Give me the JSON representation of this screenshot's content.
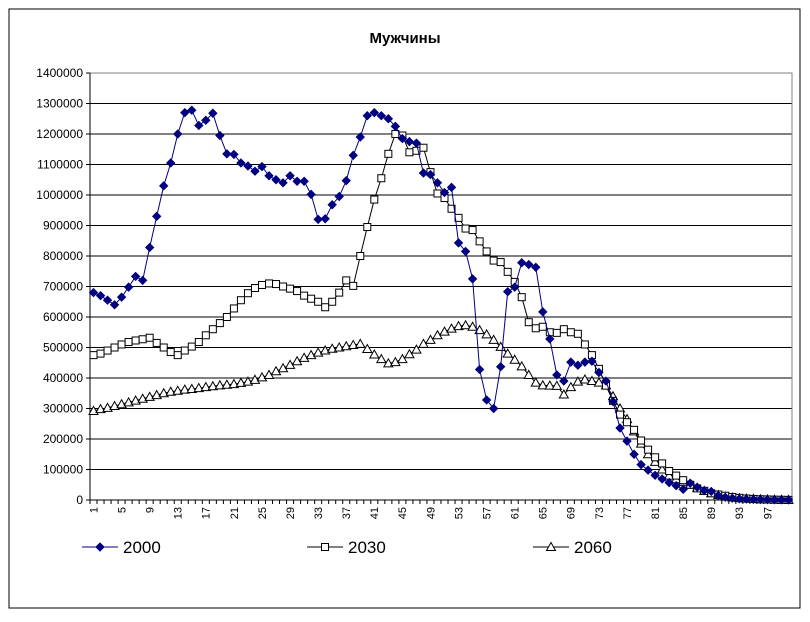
{
  "chart_data": {
    "type": "line",
    "title": "Мужчины",
    "xlabel": "",
    "ylabel": "",
    "ylim": [
      0,
      1400000
    ],
    "yticks": [
      0,
      100000,
      200000,
      300000,
      400000,
      500000,
      600000,
      700000,
      800000,
      900000,
      1000000,
      1100000,
      1200000,
      1300000,
      1400000
    ],
    "xlim": [
      1,
      100
    ],
    "xticks": [
      1,
      5,
      9,
      13,
      17,
      21,
      25,
      29,
      33,
      37,
      41,
      45,
      49,
      53,
      57,
      61,
      65,
      69,
      73,
      77,
      81,
      85,
      89,
      93,
      97
    ],
    "grid": "horizontal",
    "legend_position": "bottom",
    "series": [
      {
        "name": "2000",
        "color": "#000080",
        "marker": "diamond-filled",
        "values": [
          680000,
          670000,
          655000,
          640000,
          665000,
          698000,
          733000,
          720000,
          828000,
          930000,
          1030000,
          1105000,
          1200000,
          1270000,
          1278000,
          1228000,
          1245000,
          1268000,
          1195000,
          1135000,
          1133000,
          1105000,
          1095000,
          1078000,
          1093000,
          1063000,
          1050000,
          1040000,
          1063000,
          1045000,
          1045000,
          1002000,
          920000,
          922000,
          968000,
          995000,
          1047000,
          1130000,
          1190000,
          1260000,
          1270000,
          1260000,
          1250000,
          1225000,
          1185000,
          1175000,
          1170000,
          1072000,
          1067000,
          1040000,
          1008000,
          1025000,
          843000,
          815000,
          725000,
          428000,
          328000,
          300000,
          437000,
          683000,
          698000,
          778000,
          772000,
          763000,
          617000,
          528000,
          410000,
          390000,
          452000,
          442000,
          452000,
          455000,
          418000,
          390000,
          323000,
          236000,
          193000,
          150000,
          116000,
          98000,
          81000,
          69000,
          57000,
          47000,
          35000,
          55000,
          42000,
          31000,
          28000,
          15000,
          9000,
          6000,
          4000,
          3000,
          2000,
          1500,
          1000,
          800,
          500,
          300
        ]
      },
      {
        "name": "2030",
        "color": "#000000",
        "marker": "square-open",
        "values": [
          475000,
          480000,
          490000,
          500000,
          510000,
          518000,
          523000,
          527000,
          532000,
          515000,
          500000,
          485000,
          475000,
          490000,
          503000,
          518000,
          540000,
          560000,
          580000,
          600000,
          628000,
          655000,
          678000,
          695000,
          705000,
          710000,
          708000,
          700000,
          693000,
          685000,
          670000,
          660000,
          650000,
          632000,
          650000,
          680000,
          720000,
          702000,
          800000,
          895000,
          985000,
          1055000,
          1135000,
          1200000,
          1195000,
          1140000,
          1145000,
          1155000,
          1075000,
          1005000,
          990000,
          955000,
          925000,
          890000,
          885000,
          848000,
          815000,
          785000,
          780000,
          748000,
          715000,
          665000,
          583000,
          563000,
          568000,
          550000,
          548000,
          560000,
          550000,
          545000,
          510000,
          475000,
          430000,
          375000,
          325000,
          280000,
          255000,
          230000,
          195000,
          165000,
          140000,
          120000,
          95000,
          80000,
          65000,
          50000,
          38000,
          30000,
          22000,
          18000,
          14000,
          10000,
          7000,
          5000,
          3500,
          2500,
          1800,
          1200,
          800,
          400
        ]
      },
      {
        "name": "2060",
        "color": "#000000",
        "marker": "triangle-open",
        "values": [
          292000,
          298000,
          302000,
          308000,
          314000,
          320000,
          326000,
          332000,
          338000,
          344000,
          350000,
          355000,
          358000,
          362000,
          364000,
          367000,
          370000,
          373000,
          376000,
          378000,
          380000,
          384000,
          388000,
          394000,
          402000,
          410000,
          422000,
          432000,
          443000,
          455000,
          466000,
          475000,
          483000,
          490000,
          496000,
          500000,
          504000,
          508000,
          512000,
          495000,
          477000,
          462000,
          448000,
          452000,
          462000,
          478000,
          493000,
          512000,
          525000,
          540000,
          552000,
          562000,
          570000,
          573000,
          568000,
          557000,
          543000,
          525000,
          502000,
          480000,
          460000,
          438000,
          410000,
          385000,
          376000,
          375000,
          374000,
          346000,
          370000,
          388000,
          395000,
          390000,
          385000,
          376000,
          340000,
          300000,
          265000,
          225000,
          185000,
          150000,
          125000,
          100000,
          80000,
          68000,
          60000,
          50000,
          40000,
          30000,
          22000,
          16000,
          11000,
          8000,
          6000,
          4500,
          3500,
          2500,
          1800,
          1200,
          800,
          500
        ]
      }
    ]
  }
}
